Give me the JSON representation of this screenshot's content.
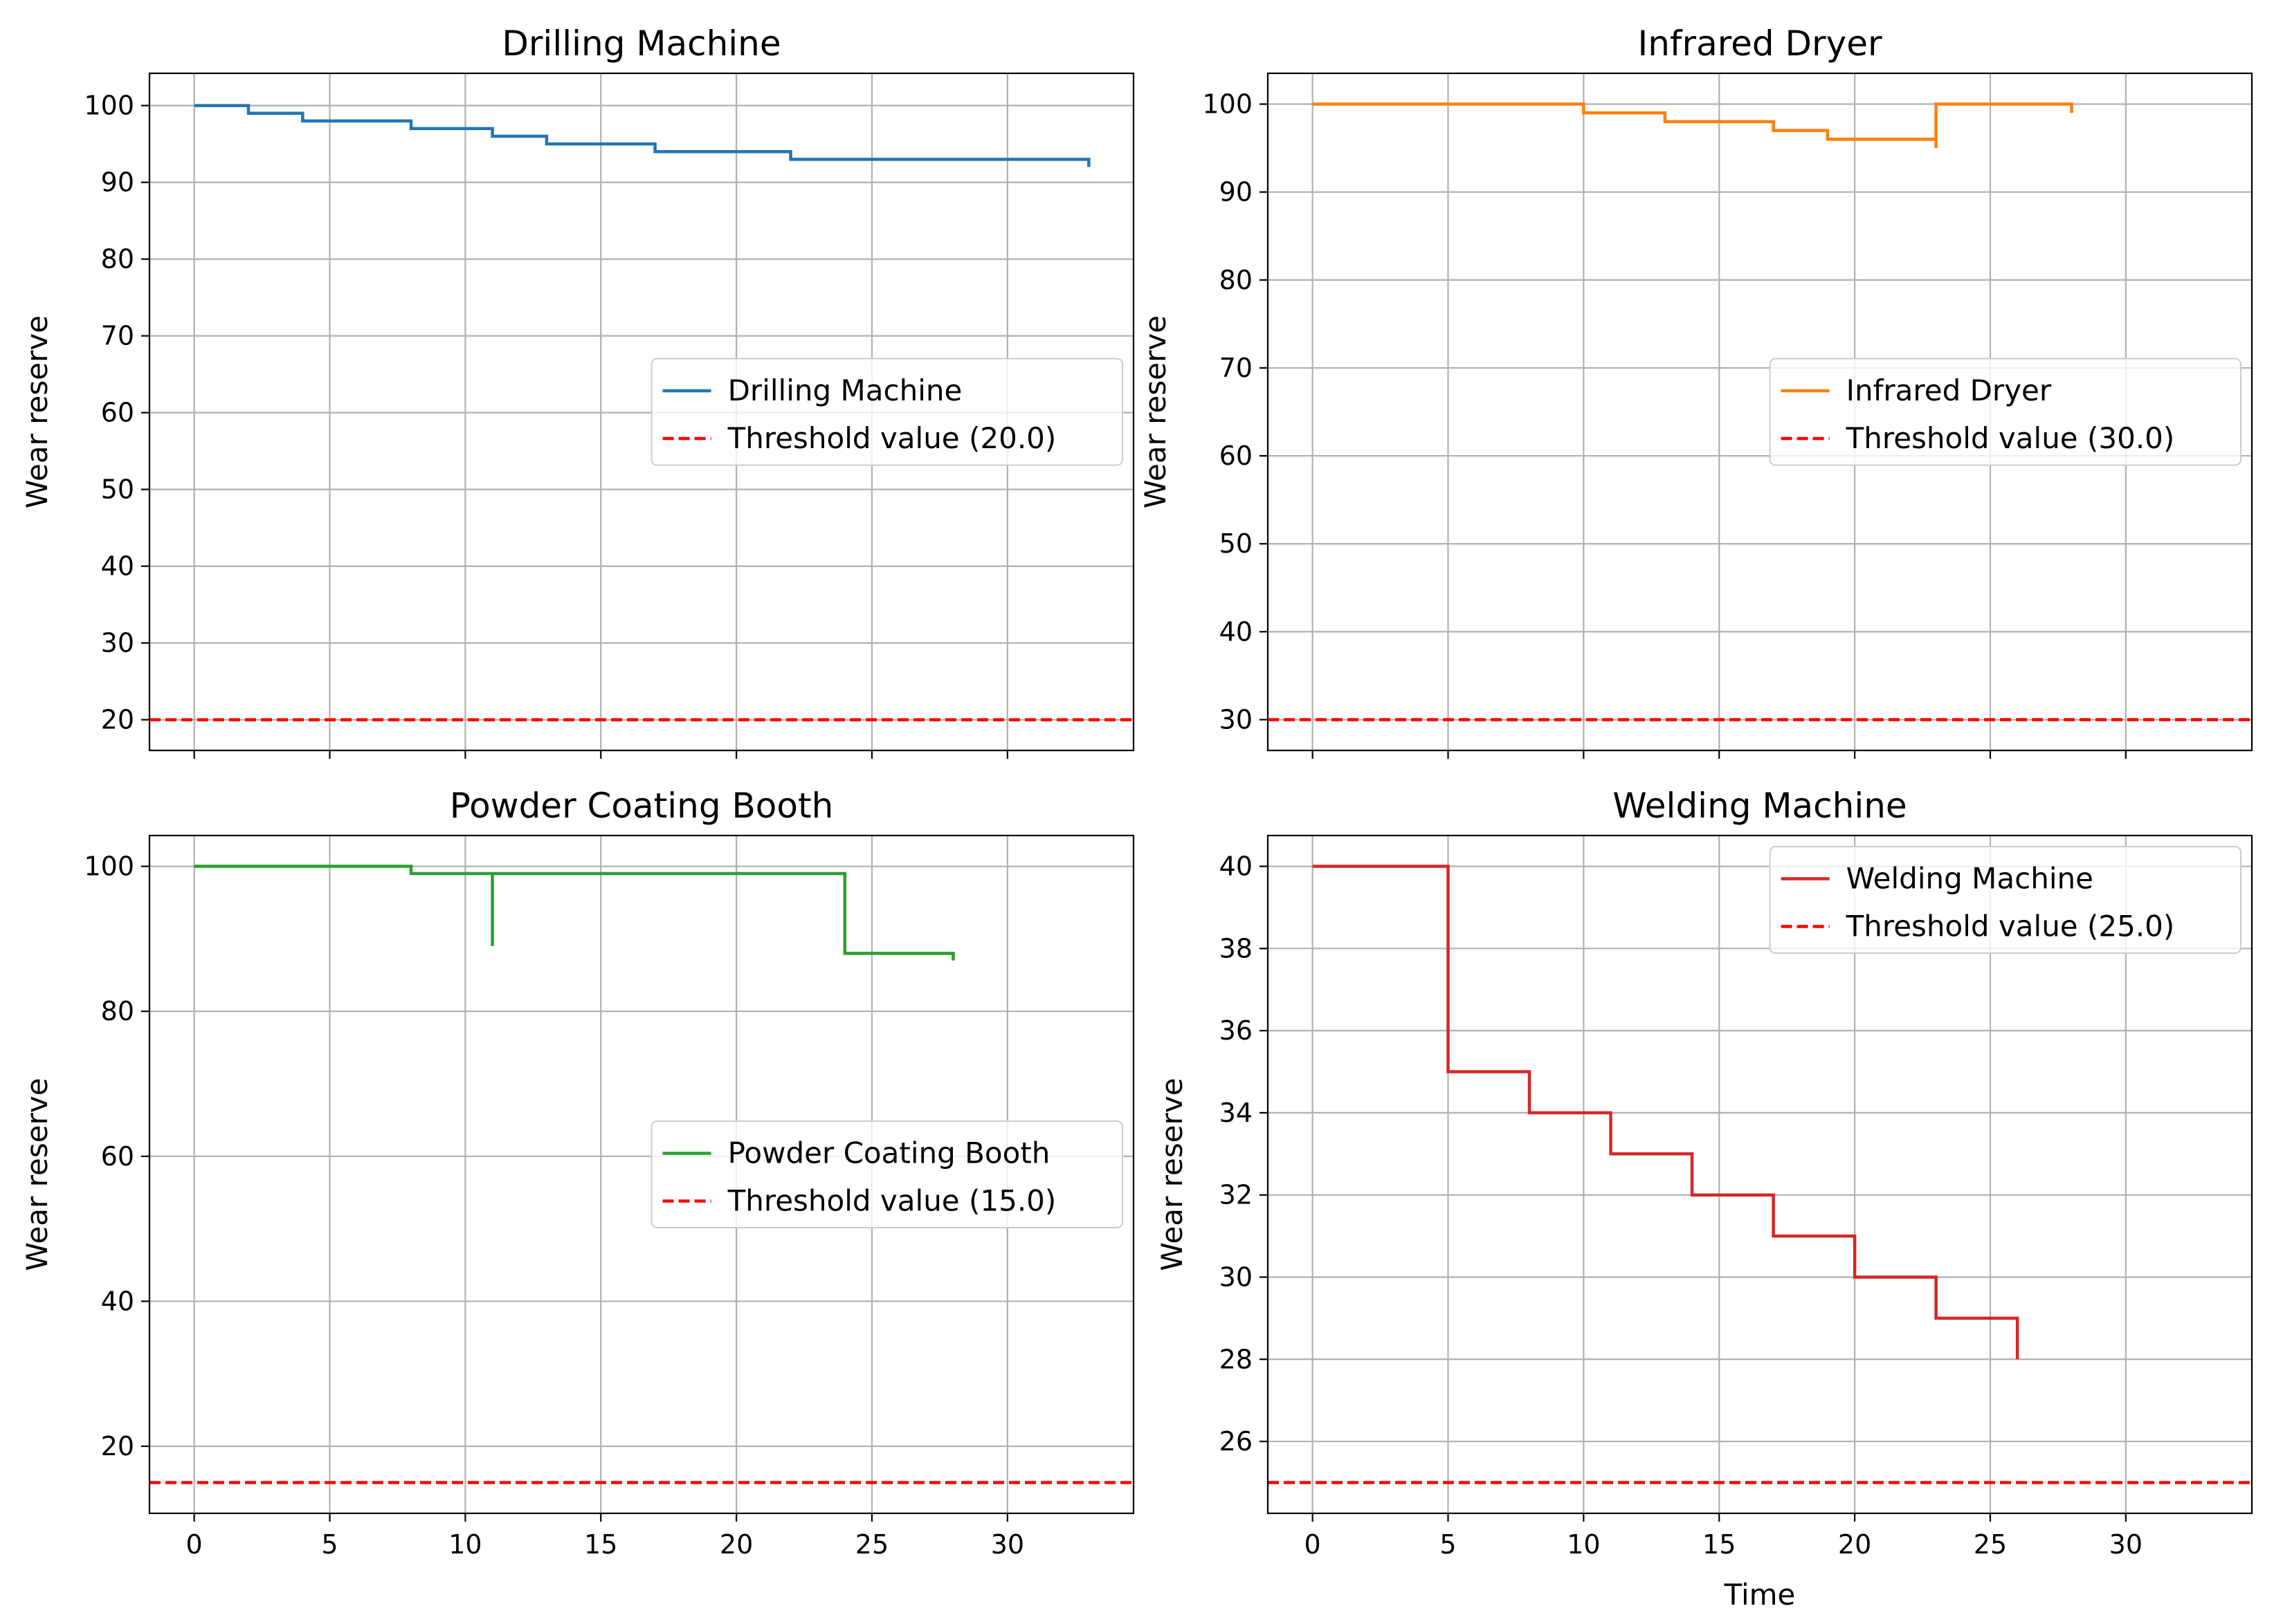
{
  "figure": {
    "xlabel": "Time"
  },
  "colors": {
    "threshold": "#ff0000",
    "grid": "#b0b0b0",
    "axis": "#000000",
    "background": "#ffffff",
    "legend_border": "#cccccc"
  },
  "chart_data": [
    {
      "type": "line",
      "step": "post",
      "title": "Drilling Machine",
      "xlabel": "",
      "ylabel": "Wear reserve",
      "xlim": [
        -1.65,
        34.65
      ],
      "ylim": [
        16,
        104.2
      ],
      "xticks": [
        0,
        5,
        10,
        15,
        20,
        25,
        30
      ],
      "show_xticklabels": false,
      "yticks": [
        20,
        30,
        40,
        50,
        60,
        70,
        80,
        90,
        100
      ],
      "grid": true,
      "legend_position": "center-right",
      "series": [
        {
          "name": "Drilling Machine",
          "color": "#1f77b4",
          "style": "solid",
          "x": [
            0,
            2,
            4,
            8,
            11,
            13,
            17,
            22,
            33,
            33
          ],
          "y": [
            100,
            99,
            98,
            97,
            96,
            95,
            94,
            93,
            93,
            92
          ]
        }
      ],
      "threshold": {
        "name": "Threshold value (20.0)",
        "value": 20.0,
        "style": "dashed"
      }
    },
    {
      "type": "line",
      "step": "post",
      "title": "Infrared Dryer",
      "xlabel": "",
      "ylabel": "Wear reserve",
      "xlim": [
        -1.65,
        34.65
      ],
      "ylim": [
        26.5,
        103.5
      ],
      "xticks": [
        0,
        5,
        10,
        15,
        20,
        25,
        30
      ],
      "show_xticklabels": false,
      "yticks": [
        30,
        40,
        50,
        60,
        70,
        80,
        90,
        100
      ],
      "grid": true,
      "legend_position": "center-right",
      "series": [
        {
          "name": "Infrared Dryer",
          "color": "#ff7f0e",
          "style": "solid",
          "x": [
            0,
            10,
            13,
            17,
            19,
            23,
            23,
            23,
            28,
            28
          ],
          "y": [
            100,
            99,
            98,
            97,
            96,
            96,
            95,
            100,
            100,
            99
          ]
        }
      ],
      "threshold": {
        "name": "Threshold value (30.0)",
        "value": 30.0,
        "style": "dashed"
      }
    },
    {
      "type": "line",
      "step": "post",
      "title": "Powder Coating Booth",
      "xlabel": "",
      "ylabel": "Wear reserve",
      "xlim": [
        -1.65,
        34.65
      ],
      "ylim": [
        10.75,
        104.25
      ],
      "xticks": [
        0,
        5,
        10,
        15,
        20,
        25,
        30
      ],
      "show_xticklabels": true,
      "yticks": [
        20,
        40,
        60,
        80,
        100
      ],
      "grid": true,
      "legend_position": "center-right",
      "series": [
        {
          "name": "Powder Coating Booth",
          "color": "#2ca02c",
          "style": "solid",
          "x": [
            0,
            8,
            11,
            11,
            11,
            24,
            28,
            28
          ],
          "y": [
            100,
            99,
            99,
            89,
            99,
            88,
            88,
            87
          ]
        }
      ],
      "threshold": {
        "name": "Threshold value (15.0)",
        "value": 15.0,
        "style": "dashed"
      }
    },
    {
      "type": "line",
      "step": "post",
      "title": "Welding Machine",
      "xlabel": "Time",
      "ylabel": "Wear reserve",
      "xlim": [
        -1.65,
        34.65
      ],
      "ylim": [
        24.25,
        40.75
      ],
      "xticks": [
        0,
        5,
        10,
        15,
        20,
        25,
        30
      ],
      "show_xticklabels": true,
      "yticks": [
        26,
        28,
        30,
        32,
        34,
        36,
        38,
        40
      ],
      "grid": true,
      "legend_position": "top-right",
      "series": [
        {
          "name": "Welding Machine",
          "color": "#d62728",
          "style": "solid",
          "x": [
            0,
            5,
            8,
            11,
            14,
            17,
            20,
            23,
            26,
            26
          ],
          "y": [
            40,
            35,
            34,
            33,
            32,
            31,
            30,
            29,
            29,
            28
          ]
        }
      ],
      "threshold": {
        "name": "Threshold value (25.0)",
        "value": 25.0,
        "style": "dashed"
      }
    }
  ]
}
